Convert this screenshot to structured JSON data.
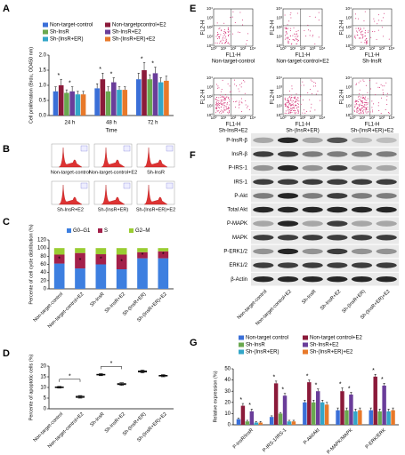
{
  "panel_labels": [
    "A",
    "B",
    "C",
    "D",
    "E",
    "F",
    "G"
  ],
  "significance_marker": "*",
  "chart_data": [
    {
      "type": "bar",
      "ylabel": "Cell proliferation (Brdu, OD450 nm)",
      "xlabel": "Time",
      "categories": [
        "24 h",
        "48 h",
        "72 h"
      ],
      "series": [
        {
          "name": "Non-target-control",
          "color": "#3a6fd8",
          "values": [
            0.8,
            0.9,
            1.2
          ],
          "errors": [
            0.15,
            0.15,
            0.2
          ]
        },
        {
          "name": "Non-targetpcontrol+E2",
          "color": "#8b1a3a",
          "values": [
            1.0,
            1.2,
            1.5
          ],
          "errors": [
            0.2,
            0.2,
            0.25
          ]
        },
        {
          "name": "Sh-InsR",
          "color": "#6aa84f",
          "values": [
            0.75,
            0.8,
            1.2
          ],
          "errors": [
            0.1,
            0.15,
            0.15
          ]
        },
        {
          "name": "Sh-InsR+E2",
          "color": "#6a3d9a",
          "values": [
            0.8,
            1.1,
            1.4
          ],
          "errors": [
            0.15,
            0.15,
            0.2
          ]
        },
        {
          "name": "Sh-(InsR+ER)",
          "color": "#33a6c8",
          "values": [
            0.7,
            0.85,
            1.1
          ],
          "errors": [
            0.1,
            0.1,
            0.15
          ]
        },
        {
          "name": "Sh-(InsR+ER)+E2",
          "color": "#e8792a",
          "values": [
            0.7,
            0.85,
            1.15
          ],
          "errors": [
            0.1,
            0.1,
            0.15
          ]
        }
      ],
      "ylim": [
        0,
        2
      ],
      "yticks": [
        {
          "value": 0,
          "label": "0.0"
        },
        0.5,
        {
          "value": 1,
          "label": "1.0"
        },
        1.5,
        {
          "value": 2,
          "label": "2.0"
        }
      ]
    },
    {
      "type": "stacked_bar",
      "ylabel": "Percente of cell cycle distribution (%)",
      "categories": [
        "Non-target-control",
        "Non-target-control+E2",
        "Sh-InsR",
        "Sh-InsR+E2",
        "Sh-(InsR+ER)",
        "Sh-(InsR+ER)+E2"
      ],
      "series": [
        {
          "name": "G0–G1",
          "color": "#3d7fe0",
          "values": [
            62,
            50,
            60,
            48,
            75,
            75
          ]
        },
        {
          "name": "S",
          "color": "#a3204a",
          "values": [
            22,
            38,
            25,
            36,
            15,
            17
          ]
        },
        {
          "name": "G2–M",
          "color": "#9acd32",
          "values": [
            16,
            12,
            15,
            16,
            10,
            8
          ]
        }
      ],
      "ylim": [
        0,
        120
      ],
      "yticks": [
        0,
        20,
        40,
        60,
        80,
        100,
        120
      ]
    },
    {
      "type": "box",
      "ylabel": "Percente of apoptotic cells (%)",
      "categories": [
        "Non-target-control",
        "Non-target-control+E2",
        "Sh-InsR",
        "Sh-InsR+E2",
        "Sh-(InsR+ER)",
        "Sh-(InsR+ER)+E2"
      ],
      "min": [
        9.7,
        5.0,
        15.5,
        11.0,
        16.8,
        15.0
      ],
      "q1": [
        9.9,
        5.3,
        15.8,
        11.3,
        17.2,
        15.3
      ],
      "median": [
        10.1,
        5.6,
        16.0,
        11.6,
        17.5,
        15.5
      ],
      "q3": [
        10.3,
        5.9,
        16.2,
        11.9,
        17.8,
        15.7
      ],
      "max": [
        10.5,
        6.2,
        16.5,
        12.2,
        18.2,
        16.0
      ],
      "ylim": [
        0,
        20
      ],
      "yticks": [
        0,
        5,
        10,
        15,
        20
      ]
    },
    {
      "type": "bar",
      "ylabel": "Relative expression (%)",
      "categories": [
        "P-InsR/InsR",
        "P-IRS-1/IRS-1",
        "P-Akt/Akt",
        "P-MAPK/MAPK",
        "P-ERK/ERK"
      ],
      "series": [
        {
          "name": "Non-target control",
          "color": "#3a6fd8",
          "values": [
            5,
            7,
            20,
            13,
            13
          ],
          "errors": [
            1,
            1,
            2,
            2,
            2
          ]
        },
        {
          "name": "Non-target control+E2",
          "color": "#8b1a3a",
          "values": [
            17,
            37,
            38,
            30,
            43
          ],
          "errors": [
            2,
            2,
            2,
            3,
            2
          ]
        },
        {
          "name": "Sh-InsR",
          "color": "#6aa84f",
          "values": [
            3,
            10,
            20,
            13,
            12
          ],
          "errors": [
            1,
            1,
            2,
            2,
            2
          ]
        },
        {
          "name": "Sh-InsR+E2",
          "color": "#6a3d9a",
          "values": [
            12,
            26,
            30,
            27,
            35
          ],
          "errors": [
            2,
            2,
            2,
            2,
            2
          ]
        },
        {
          "name": "Sh-(InsR+ER)",
          "color": "#33a6c8",
          "values": [
            2,
            3,
            20,
            12,
            12
          ],
          "errors": [
            1,
            1,
            2,
            2,
            2
          ]
        },
        {
          "name": "Sh-(InsR+ER)+E2",
          "color": "#e8792a",
          "values": [
            2,
            3,
            18,
            13,
            13
          ],
          "errors": [
            1,
            1,
            2,
            2,
            2
          ]
        }
      ],
      "ylim": [
        0,
        50
      ],
      "yticks": [
        0,
        10,
        20,
        30,
        40,
        50
      ]
    }
  ],
  "cell_cycle_histograms": {
    "labels": [
      "Non-target-control",
      "Non-target-control+E2",
      "Sh-InsR",
      "Sh-InsR+E2",
      "Sh-(InsR+ER)",
      "Sh-(InsR+ER)+E2"
    ]
  },
  "flow_cytometry": {
    "x_label": "FL1-H",
    "y_label": "FL2-H",
    "ticks": [
      "10⁰",
      "10¹",
      "10²",
      "10³",
      "10⁴"
    ],
    "labels": [
      "Non-target-control",
      "Non-target-control+E2",
      "Sh-InsR",
      "Sh-InsR+E2",
      "Sh-(InsR+ER)",
      "Sh-(InsR+ER)+E2"
    ]
  },
  "western_blot": {
    "rows": [
      "P-InsR-β",
      "InsR-β",
      "P-IRS-1",
      "IRS-1",
      "P-Akt",
      "Total Akt",
      "P-MAPK",
      "MAPK",
      "P-ERK1/2",
      "ERK1/2",
      "β-Actin"
    ],
    "lanes": [
      "Non-target-control",
      "Non-target-control+E2",
      "Sh-InsR",
      "Sh-InsR+E2",
      "Sh-(InsR+ER)",
      "Sh-(InsR+ER)+E2"
    ]
  }
}
